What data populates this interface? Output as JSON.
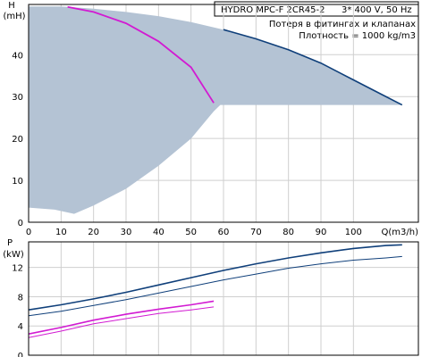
{
  "colors": {
    "envelope_fill": "#b4c3d4",
    "performance_curve": "#0f3f7a",
    "pipe_loss_curve": "#d21ad2",
    "grid": "#cfcfcf",
    "axis": "#000000"
  },
  "header": {
    "model": "HYDRO MPC-F 2CR45-2",
    "supply": "3* 400 V, 50 Hz",
    "note_losses": "Потеря в фитингах и клапанах",
    "note_density": "Плотность = 1000 kg/m3"
  },
  "chart_data": [
    {
      "id": "head",
      "type": "area",
      "ylabel": "H",
      "yunit": "(mH)",
      "xlabel": "Q(m3/h)",
      "xlim": [
        0,
        120
      ],
      "ylim": [
        0,
        52
      ],
      "grid": true,
      "x_ticks": [
        0,
        10,
        20,
        30,
        40,
        50,
        60,
        70,
        80,
        90,
        100
      ],
      "y_ticks": [
        0,
        10,
        20,
        30,
        40
      ],
      "operating_envelope": {
        "upper": [
          [
            0,
            51.5
          ],
          [
            10,
            51.5
          ],
          [
            20,
            51.0
          ],
          [
            30,
            50.2
          ],
          [
            40,
            49.2
          ],
          [
            50,
            47.8
          ],
          [
            60,
            46.0
          ],
          [
            70,
            43.8
          ],
          [
            80,
            41.2
          ],
          [
            90,
            38.0
          ],
          [
            100,
            34.0
          ],
          [
            108,
            30.8
          ],
          [
            115,
            28.0
          ]
        ],
        "lower": [
          [
            0,
            3.5
          ],
          [
            8,
            3.0
          ],
          [
            14,
            2.0
          ],
          [
            20,
            4.0
          ],
          [
            30,
            8.0
          ],
          [
            40,
            13.5
          ],
          [
            50,
            20.0
          ],
          [
            57,
            26.5
          ],
          [
            59,
            28.0
          ],
          [
            70,
            28.0
          ],
          [
            80,
            28.0
          ],
          [
            90,
            28.0
          ],
          [
            100,
            28.0
          ],
          [
            112,
            28.0
          ],
          [
            115,
            28.0
          ]
        ]
      },
      "series": [
        {
          "id": "pump-max-speed",
          "values": [
            [
              60,
              46.0
            ],
            [
              70,
              43.8
            ],
            [
              80,
              41.2
            ],
            [
              90,
              38.0
            ],
            [
              100,
              34.0
            ],
            [
              108,
              30.8
            ],
            [
              115,
              28.0
            ]
          ]
        },
        {
          "id": "pipe-loss",
          "values": [
            [
              12,
              51.4
            ],
            [
              20,
              50.2
            ],
            [
              30,
              47.5
            ],
            [
              40,
              43.2
            ],
            [
              50,
              37.0
            ],
            [
              57,
              28.5
            ]
          ]
        }
      ]
    },
    {
      "id": "power",
      "type": "line",
      "ylabel": "P",
      "yunit": "(kW)",
      "xlim": [
        0,
        120
      ],
      "ylim": [
        0,
        15.5
      ],
      "grid": true,
      "y_ticks": [
        0,
        4,
        8,
        12
      ],
      "series": [
        {
          "id": "power-p1",
          "values": [
            [
              0,
              6.2
            ],
            [
              10,
              6.9
            ],
            [
              20,
              7.7
            ],
            [
              30,
              8.6
            ],
            [
              40,
              9.6
            ],
            [
              50,
              10.6
            ],
            [
              60,
              11.6
            ],
            [
              70,
              12.5
            ],
            [
              80,
              13.3
            ],
            [
              90,
              14.0
            ],
            [
              100,
              14.6
            ],
            [
              110,
              15.0
            ],
            [
              115,
              15.1
            ]
          ]
        },
        {
          "id": "power-p2",
          "values": [
            [
              0,
              5.4
            ],
            [
              10,
              6.0
            ],
            [
              20,
              6.8
            ],
            [
              30,
              7.6
            ],
            [
              40,
              8.5
            ],
            [
              50,
              9.4
            ],
            [
              60,
              10.3
            ],
            [
              70,
              11.1
            ],
            [
              80,
              11.9
            ],
            [
              90,
              12.5
            ],
            [
              100,
              13.0
            ],
            [
              110,
              13.3
            ],
            [
              115,
              13.5
            ]
          ]
        },
        {
          "id": "loss-p1",
          "values": [
            [
              0,
              2.9
            ],
            [
              10,
              3.8
            ],
            [
              20,
              4.8
            ],
            [
              30,
              5.6
            ],
            [
              40,
              6.3
            ],
            [
              50,
              6.9
            ],
            [
              57,
              7.4
            ]
          ]
        },
        {
          "id": "loss-p2",
          "values": [
            [
              0,
              2.4
            ],
            [
              10,
              3.3
            ],
            [
              20,
              4.3
            ],
            [
              30,
              5.0
            ],
            [
              40,
              5.7
            ],
            [
              50,
              6.2
            ],
            [
              57,
              6.6
            ]
          ]
        }
      ]
    }
  ]
}
